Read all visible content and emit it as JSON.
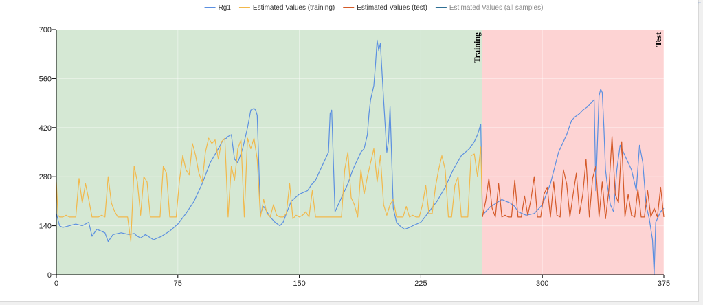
{
  "chart_data": {
    "type": "line",
    "title": "",
    "xlabel": "",
    "ylabel": "",
    "xlim": [
      0,
      375
    ],
    "ylim": [
      0,
      700
    ],
    "xticks": [
      "0",
      "75",
      "150",
      "225",
      "300",
      "375"
    ],
    "yticks": [
      "0",
      "140",
      "280",
      "420",
      "560",
      "700"
    ],
    "grid": true,
    "legend_position": "top",
    "regions": [
      {
        "label": "Training",
        "x_start": 0,
        "x_end": 263,
        "color": "#d5e8d4"
      },
      {
        "label": "Test",
        "x_start": 263,
        "x_end": 375,
        "color": "#fdd3d3"
      }
    ],
    "series": [
      {
        "name": "Rg1",
        "color": "#5b8fe0",
        "x": [
          0,
          2,
          4,
          8,
          12,
          16,
          20,
          22,
          25,
          30,
          32,
          35,
          40,
          45,
          48,
          50,
          52,
          55,
          60,
          65,
          70,
          75,
          80,
          85,
          90,
          95,
          100,
          103,
          105,
          106,
          108,
          110,
          112,
          115,
          118,
          120,
          122,
          123,
          124,
          126,
          128,
          130,
          132,
          135,
          138,
          140,
          142,
          145,
          150,
          155,
          158,
          160,
          163,
          166,
          168,
          169,
          170,
          172,
          175,
          178,
          180,
          183,
          186,
          188,
          190,
          192,
          193,
          194,
          196,
          197,
          198,
          199,
          200,
          202,
          204,
          205,
          206,
          208,
          210,
          212,
          215,
          218,
          220,
          225,
          230,
          235,
          240,
          245,
          250,
          255,
          258,
          260,
          262,
          263,
          265,
          268,
          270,
          275,
          280,
          283,
          285,
          290,
          295,
          300,
          305,
          310,
          315,
          318,
          320,
          323,
          325,
          328,
          330,
          332,
          333,
          335,
          336,
          337,
          338,
          339,
          340,
          342,
          344,
          346,
          348,
          350,
          352,
          355,
          357,
          358,
          360,
          362,
          364,
          366,
          368,
          369,
          370,
          371,
          372,
          373,
          375
        ],
        "y": [
          175,
          140,
          135,
          140,
          145,
          140,
          150,
          110,
          130,
          120,
          95,
          115,
          120,
          115,
          118,
          110,
          105,
          115,
          100,
          110,
          125,
          145,
          175,
          210,
          260,
          320,
          360,
          385,
          390,
          395,
          400,
          330,
          320,
          360,
          420,
          470,
          475,
          470,
          455,
          175,
          195,
          180,
          165,
          150,
          140,
          150,
          175,
          210,
          230,
          240,
          260,
          270,
          300,
          330,
          350,
          460,
          470,
          180,
          210,
          240,
          260,
          300,
          330,
          350,
          360,
          400,
          460,
          500,
          540,
          600,
          670,
          640,
          660,
          500,
          350,
          380,
          480,
          190,
          150,
          140,
          130,
          135,
          140,
          150,
          180,
          210,
          250,
          300,
          340,
          360,
          380,
          400,
          430,
          170,
          180,
          195,
          200,
          215,
          205,
          195,
          180,
          170,
          175,
          200,
          260,
          350,
          400,
          440,
          450,
          460,
          470,
          480,
          490,
          500,
          240,
          510,
          530,
          520,
          420,
          300,
          260,
          200,
          180,
          300,
          370,
          350,
          330,
          300,
          260,
          240,
          370,
          320,
          200,
          160,
          100,
          0,
          150,
          160,
          170,
          180,
          190
        ]
      },
      {
        "name": "Estimated Values (training)",
        "color": "#f2b84b",
        "x": [
          0,
          1,
          2,
          4,
          6,
          8,
          10,
          12,
          14,
          16,
          18,
          20,
          22,
          24,
          26,
          28,
          30,
          32,
          34,
          36,
          38,
          40,
          42,
          44,
          46,
          48,
          50,
          52,
          54,
          56,
          58,
          60,
          62,
          64,
          66,
          68,
          70,
          72,
          74,
          76,
          78,
          80,
          82,
          84,
          86,
          88,
          90,
          92,
          94,
          96,
          98,
          100,
          102,
          104,
          106,
          108,
          110,
          112,
          114,
          116,
          118,
          120,
          122,
          124,
          126,
          128,
          130,
          132,
          134,
          136,
          138,
          140,
          142,
          144,
          146,
          148,
          150,
          152,
          154,
          156,
          158,
          160,
          162,
          164,
          166,
          168,
          170,
          172,
          174,
          176,
          178,
          180,
          182,
          184,
          186,
          188,
          190,
          192,
          194,
          196,
          198,
          200,
          202,
          204,
          206,
          208,
          210,
          212,
          214,
          216,
          218,
          220,
          222,
          224,
          226,
          228,
          230,
          232,
          234,
          236,
          238,
          240,
          242,
          244,
          246,
          248,
          250,
          252,
          254,
          256,
          258,
          260,
          262,
          263
        ],
        "y": [
          265,
          170,
          165,
          165,
          170,
          165,
          165,
          165,
          275,
          205,
          260,
          215,
          165,
          165,
          165,
          170,
          165,
          280,
          205,
          180,
          165,
          165,
          165,
          165,
          95,
          310,
          265,
          170,
          280,
          265,
          165,
          165,
          165,
          165,
          310,
          290,
          165,
          165,
          165,
          270,
          340,
          300,
          285,
          375,
          340,
          290,
          265,
          350,
          390,
          375,
          385,
          330,
          380,
          390,
          165,
          310,
          270,
          360,
          385,
          165,
          390,
          360,
          390,
          330,
          165,
          215,
          175,
          165,
          200,
          170,
          165,
          165,
          175,
          260,
          160,
          170,
          165,
          170,
          180,
          165,
          240,
          165,
          165,
          165,
          165,
          165,
          165,
          165,
          165,
          165,
          300,
          350,
          220,
          200,
          165,
          300,
          230,
          280,
          320,
          360,
          265,
          340,
          200,
          170,
          200,
          215,
          165,
          165,
          165,
          195,
          165,
          170,
          165,
          165,
          200,
          255,
          175,
          175,
          250,
          300,
          340,
          300,
          165,
          165,
          255,
          280,
          165,
          165,
          165,
          340,
          345,
          280,
          365,
          170
        ]
      },
      {
        "name": "Estimated Values (test)",
        "color": "#d45a28",
        "x": [
          263,
          265,
          267,
          269,
          271,
          273,
          275,
          277,
          279,
          281,
          283,
          285,
          287,
          289,
          291,
          293,
          295,
          297,
          299,
          301,
          303,
          305,
          307,
          309,
          311,
          313,
          315,
          317,
          319,
          321,
          323,
          325,
          327,
          329,
          331,
          333,
          335,
          337,
          339,
          341,
          343,
          345,
          347,
          349,
          351,
          353,
          355,
          357,
          359,
          361,
          363,
          365,
          367,
          369,
          371,
          373,
          375
        ],
        "y": [
          165,
          210,
          275,
          190,
          165,
          260,
          165,
          170,
          165,
          165,
          270,
          165,
          165,
          225,
          170,
          215,
          280,
          165,
          165,
          230,
          250,
          165,
          265,
          170,
          165,
          300,
          260,
          165,
          230,
          290,
          175,
          230,
          330,
          165,
          275,
          310,
          165,
          265,
          160,
          240,
          395,
          230,
          205,
          380,
          165,
          230,
          170,
          165,
          245,
          165,
          165,
          240,
          165,
          190,
          165,
          250,
          165
        ]
      }
    ],
    "legend_extra": [
      {
        "name": "Estimated Values (all samples)",
        "color": "#2e6f94"
      }
    ]
  }
}
